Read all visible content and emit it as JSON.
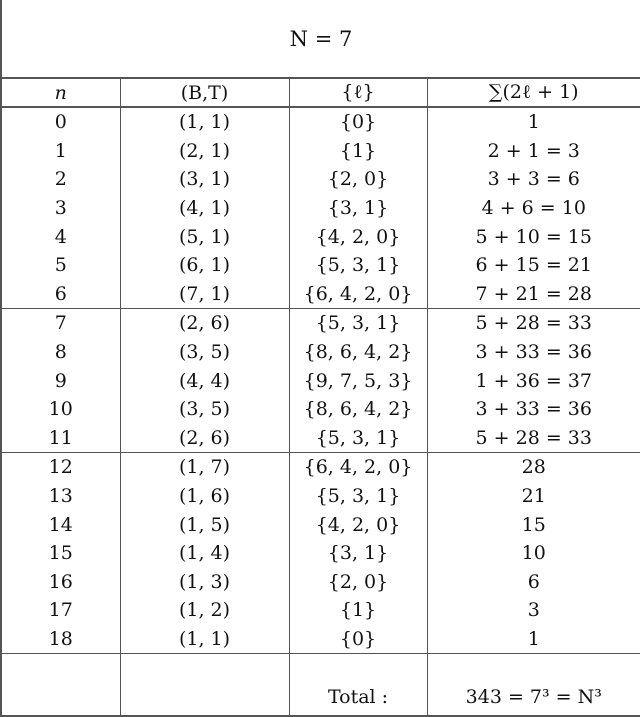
{
  "title": "N = 7",
  "headers": [
    "n",
    "(B,T)",
    "{ℓ}",
    "∑(2ℓ + 1)"
  ],
  "groups": [
    [
      [
        "0",
        "(1, 1)",
        "{0}",
        "1"
      ],
      [
        "1",
        "(2, 1)",
        "{1}",
        "2 + 1 = 3"
      ],
      [
        "2",
        "(3, 1)",
        "{2, 0}",
        "3 + 3 = 6"
      ],
      [
        "3",
        "(4, 1)",
        "{3, 1}",
        "4 + 6 = 10"
      ],
      [
        "4",
        "(5, 1)",
        "{4, 2, 0}",
        "5 + 10 = 15"
      ],
      [
        "5",
        "(6, 1)",
        "{5, 3, 1}",
        "6 + 15 = 21"
      ],
      [
        "6",
        "(7, 1)",
        "{6, 4, 2, 0}",
        "7 + 21 = 28"
      ]
    ],
    [
      [
        "7",
        "(2, 6)",
        "{5, 3, 1}",
        "5 + 28 = 33"
      ],
      [
        "8",
        "(3, 5)",
        "{8, 6, 4, 2}",
        "3 + 33 = 36"
      ],
      [
        "9",
        "(4, 4)",
        "{9, 7, 5, 3}",
        "1 + 36 = 37"
      ],
      [
        "10",
        "(3, 5)",
        "{8, 6, 4, 2}",
        "3 + 33 = 36"
      ],
      [
        "11",
        "(2, 6)",
        "{5, 3, 1}",
        "5 + 28 = 33"
      ]
    ],
    [
      [
        "12",
        "(1, 7)",
        "{6, 4, 2, 0}",
        "28"
      ],
      [
        "13",
        "(1, 6)",
        "{5, 3, 1}",
        "21"
      ],
      [
        "14",
        "(1, 5)",
        "{4, 2, 0}",
        "15"
      ],
      [
        "15",
        "(1, 4)",
        "{3, 1}",
        "10"
      ],
      [
        "16",
        "(1, 3)",
        "{2, 0}",
        "6"
      ],
      [
        "17",
        "(1, 2)",
        "{1}",
        "3"
      ],
      [
        "18",
        "(1, 1)",
        "{0}",
        "1"
      ]
    ]
  ],
  "total": {
    "label": "Total :",
    "value": "343 = 7³ = N³"
  }
}
